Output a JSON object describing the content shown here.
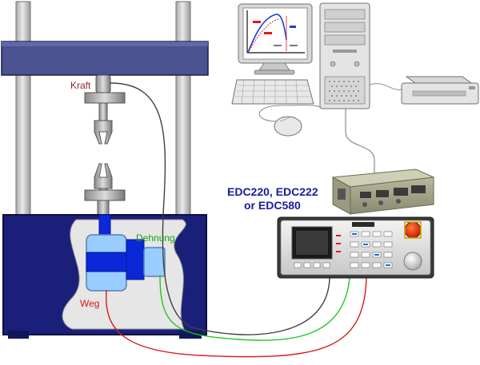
{
  "labels": {
    "kraft": "Kraft",
    "dehnung": "Dehnung",
    "weg": "Weg",
    "controller_line1": "EDC220, EDC222",
    "controller_line2": "or EDC580"
  },
  "colors": {
    "frame_blue": "#1a1f7a",
    "crosshead": "#4a5290",
    "column_gray": "#d0d0d0",
    "cutout_gray": "#e6e6e6",
    "sensor_light_blue": "#99ccff",
    "sensor_blue": "#0a28d8",
    "kraft_label": "#8b2a2a",
    "dehnung_label": "#11a611",
    "weg_label": "#d21a1a",
    "controller_label": "#1a1aa0",
    "cable_dark": "#404040",
    "cable_green": "#22c722",
    "cable_red": "#d61a1a",
    "cable_gray": "#8c8c8c"
  },
  "icons": [
    "monitor-icon",
    "pc-tower-icon",
    "keyboard-icon",
    "mouse-icon",
    "printer-icon",
    "controller-module-icon",
    "controller-panel-icon",
    "emergency-stop-icon"
  ]
}
